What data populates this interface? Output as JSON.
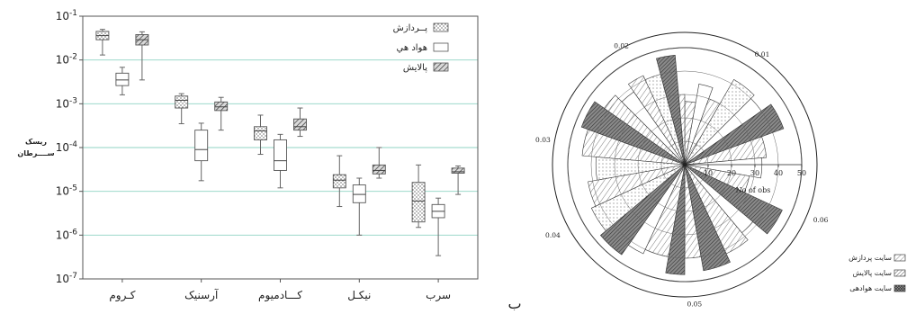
{
  "panel_letter": "ب",
  "chart_data": [
    {
      "type": "box",
      "ylabel_line1": "ریسک",
      "ylabel_line2": "ســــرطان",
      "y_scale": "log",
      "ylim": [
        1e-07,
        0.1
      ],
      "y_ticks": [
        {
          "value": 1e-07,
          "label": "10-7"
        },
        {
          "value": 1e-06,
          "label": "10-6"
        },
        {
          "value": 1e-05,
          "label": "10-5"
        },
        {
          "value": 0.0001,
          "label": "10-4"
        },
        {
          "value": 0.001,
          "label": "10-3"
        },
        {
          "value": 0.01,
          "label": "10-2"
        },
        {
          "value": 0.1,
          "label": "10-1"
        }
      ],
      "grid": "horizontal",
      "legend_position": "top-right",
      "categories": [
        "کـروم",
        "آرسنیک",
        "کـــادمیوم",
        "نیکـل",
        "سرب"
      ],
      "series": [
        {
          "name": "پــردازش",
          "pattern": "dots",
          "boxes": [
            {
              "min": 0.013,
              "q1": 0.029,
              "median": 0.036,
              "q3": 0.045,
              "max": 0.05
            },
            {
              "min": 0.00035,
              "q1": 0.0008,
              "median": 0.0012,
              "q3": 0.0015,
              "max": 0.0017
            },
            {
              "min": 7e-05,
              "q1": 0.00015,
              "median": 0.00024,
              "q3": 0.0003,
              "max": 0.00055
            },
            {
              "min": 4.5e-06,
              "q1": 1.2e-05,
              "median": 1.8e-05,
              "q3": 2.4e-05,
              "max": 6.5e-05
            },
            {
              "min": 1.5e-06,
              "q1": 2e-06,
              "median": 6e-06,
              "q3": 1.6e-05,
              "max": 4e-05
            }
          ]
        },
        {
          "name": "هواد هي",
          "pattern": "empty",
          "boxes": [
            {
              "min": 0.0016,
              "q1": 0.0026,
              "median": 0.0035,
              "q3": 0.005,
              "max": 0.0068
            },
            {
              "min": 1.75e-05,
              "q1": 5e-05,
              "median": 9e-05,
              "q3": 0.00025,
              "max": 0.00036
            },
            {
              "min": 1.2e-05,
              "q1": 3e-05,
              "median": 5e-05,
              "q3": 0.00015,
              "max": 0.0002
            },
            {
              "min": 1e-06,
              "q1": 5.5e-06,
              "median": 8.5e-06,
              "q3": 1.4e-05,
              "max": 2e-05
            },
            {
              "min": 3.4e-07,
              "q1": 2.5e-06,
              "median": 3.5e-06,
              "q3": 5e-06,
              "max": 7e-06
            }
          ]
        },
        {
          "name": "پالايش",
          "pattern": "hatch",
          "boxes": [
            {
              "min": 0.0035,
              "q1": 0.022,
              "median": 0.029,
              "q3": 0.038,
              "max": 0.044
            },
            {
              "min": 0.00025,
              "q1": 0.0007,
              "median": 0.00085,
              "q3": 0.0011,
              "max": 0.0014
            },
            {
              "min": 0.00018,
              "q1": 0.00025,
              "median": 0.0003,
              "q3": 0.00045,
              "max": 0.0008
            },
            {
              "min": 2e-05,
              "q1": 2.5e-05,
              "median": 3e-05,
              "q3": 4e-05,
              "max": 0.0001
            },
            {
              "min": 8.5e-06,
              "q1": 2.6e-05,
              "median": 2.8e-05,
              "q3": 3.4e-05,
              "max": 3.8e-05
            }
          ]
        }
      ]
    },
    {
      "type": "polar-histogram",
      "direction_labels": [
        "0.01",
        "0.02",
        "0.03",
        "0.04",
        "0.05",
        "0.06"
      ],
      "radial_ticks": [
        10,
        20,
        30,
        40,
        50
      ],
      "radial_axis_label": "No of obs",
      "rmax": 50,
      "legend_position": "bottom-right",
      "legend": [
        {
          "label": "سایت پردازش",
          "pattern": "diag-light"
        },
        {
          "label": "سایت پالایش",
          "pattern": "diag-dense"
        },
        {
          "label": "سایت هوادهی",
          "pattern": "crosshatch"
        }
      ],
      "sectors": [
        {
          "start": 0,
          "end": 10,
          "r": 27,
          "pattern": "diag"
        },
        {
          "start": 10,
          "end": 20,
          "r": 35,
          "pattern": "empty"
        },
        {
          "start": 20,
          "end": 30,
          "r": 30,
          "pattern": "diag"
        },
        {
          "start": 30,
          "end": 45,
          "r": 42,
          "pattern": "dots"
        },
        {
          "start": 45,
          "end": 55,
          "r": 40,
          "pattern": "empty"
        },
        {
          "start": 55,
          "end": 70,
          "r": 45,
          "pattern": "dark"
        },
        {
          "start": 70,
          "end": 85,
          "r": 35,
          "pattern": "diag"
        },
        {
          "start": 85,
          "end": 100,
          "r": 33,
          "pattern": "empty"
        },
        {
          "start": 100,
          "end": 115,
          "r": 28,
          "pattern": "diag"
        },
        {
          "start": 115,
          "end": 130,
          "r": 46,
          "pattern": "dark"
        },
        {
          "start": 130,
          "end": 140,
          "r": 38,
          "pattern": "empty"
        },
        {
          "start": 140,
          "end": 155,
          "r": 42,
          "pattern": "diag"
        },
        {
          "start": 155,
          "end": 170,
          "r": 46,
          "pattern": "dark"
        },
        {
          "start": 170,
          "end": 180,
          "r": 40,
          "pattern": "diag"
        },
        {
          "start": 180,
          "end": 190,
          "r": 47,
          "pattern": "dark"
        },
        {
          "start": 190,
          "end": 205,
          "r": 40,
          "pattern": "diag"
        },
        {
          "start": 205,
          "end": 215,
          "r": 42,
          "pattern": "empty"
        },
        {
          "start": 215,
          "end": 230,
          "r": 47,
          "pattern": "dark"
        },
        {
          "start": 230,
          "end": 245,
          "r": 44,
          "pattern": "dots"
        },
        {
          "start": 245,
          "end": 260,
          "r": 42,
          "pattern": "diag"
        },
        {
          "start": 260,
          "end": 275,
          "r": 38,
          "pattern": "dots"
        },
        {
          "start": 275,
          "end": 290,
          "r": 44,
          "pattern": "diag"
        },
        {
          "start": 290,
          "end": 305,
          "r": 47,
          "pattern": "dark"
        },
        {
          "start": 305,
          "end": 315,
          "r": 42,
          "pattern": "diag"
        },
        {
          "start": 315,
          "end": 325,
          "r": 38,
          "pattern": "empty"
        },
        {
          "start": 325,
          "end": 335,
          "r": 42,
          "pattern": "diag"
        },
        {
          "start": 335,
          "end": 345,
          "r": 40,
          "pattern": "dots"
        },
        {
          "start": 345,
          "end": 355,
          "r": 47,
          "pattern": "dark"
        },
        {
          "start": 355,
          "end": 360,
          "r": 30,
          "pattern": "diag"
        }
      ]
    }
  ],
  "colors": {
    "axis": "#555555",
    "grid": "#8fd3c3",
    "ink": "#222222",
    "dark_fill": "#555555",
    "hatch": "#333333"
  }
}
